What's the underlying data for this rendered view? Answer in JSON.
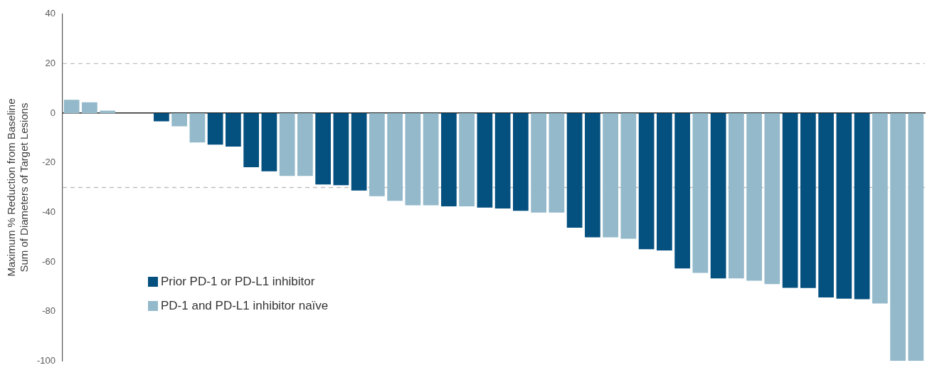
{
  "chart_data": {
    "type": "bar",
    "ylabel": "Maximum % Reduction from Baseline\nSum of Diameters of Target Lesions",
    "categories": [
      null,
      null,
      null,
      null,
      null,
      null,
      null,
      null,
      null,
      null,
      null,
      null,
      null,
      null,
      null,
      null,
      null,
      null,
      null,
      null,
      null,
      null,
      null,
      null,
      null,
      null,
      null,
      null,
      null,
      null,
      null,
      null,
      null,
      null,
      null,
      null,
      null,
      null,
      null,
      null,
      null,
      null,
      null,
      null,
      null,
      null,
      null,
      null
    ],
    "series": [
      {
        "name": "Prior PD-1 or PD-L1 inhibitor",
        "color": "#04507f",
        "values": [
          null,
          null,
          null,
          null,
          null,
          -3.3,
          null,
          null,
          -12.7,
          -13.5,
          -21.8,
          -23.5,
          null,
          null,
          -28.8,
          -29.1,
          -31.2,
          null,
          null,
          null,
          null,
          -37.6,
          null,
          -38.1,
          -38.5,
          -39.4,
          null,
          null,
          -46.2,
          -50.1,
          null,
          null,
          -54.9,
          -55.4,
          -62.7,
          null,
          -66.7,
          null,
          null,
          null,
          -70.5,
          -70.6,
          -74.4,
          -74.9,
          -75.1,
          null,
          null,
          null
        ]
      },
      {
        "name": "PD-1 and PD-L1 inhibitor naïve",
        "color": "#93b9ca",
        "values": [
          5.4,
          4.4,
          1,
          null,
          null,
          null,
          -5.3,
          -11.8,
          null,
          null,
          null,
          null,
          -25.3,
          -25.3,
          null,
          null,
          null,
          -33.5,
          -35.4,
          -37.2,
          -37.2,
          null,
          -37.6,
          null,
          null,
          null,
          -40.1,
          -40.1,
          null,
          null,
          -50.1,
          -50.7,
          null,
          null,
          null,
          -64.5,
          null,
          -66.7,
          -67.6,
          -69,
          null,
          null,
          null,
          null,
          null,
          -76.8,
          -100,
          -100
        ]
      }
    ],
    "ylim": [
      -100,
      40
    ],
    "yticks": [
      -100,
      -80,
      -60,
      -40,
      -20,
      0,
      20,
      40
    ],
    "grid": false,
    "legend": "bottom left",
    "tick_labels": "y",
    "ref_lines": [
      {
        "axis": "y",
        "value": 20,
        "color": "#bfbfbf",
        "line_style": "dashed"
      },
      {
        "axis": "y",
        "value": -30,
        "color": "#bfbfbf",
        "line_style": "dashed"
      }
    ]
  }
}
